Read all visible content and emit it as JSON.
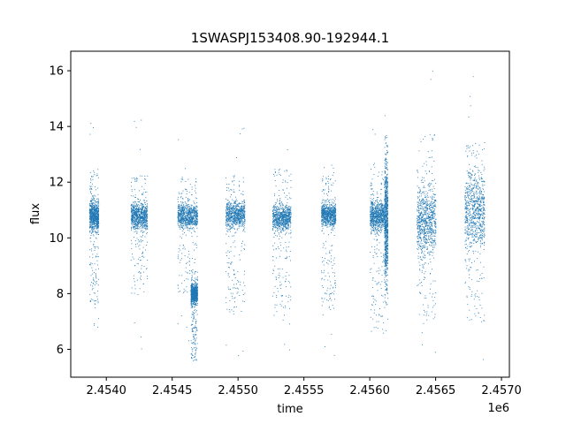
{
  "chart_data": {
    "type": "scatter",
    "title": "1SWASPJ153408.90-192944.1",
    "xlabel": "time",
    "ylabel": "flux",
    "x_offset_label": "1e6",
    "xlim": [
      2453730,
      2457060
    ],
    "ylim": [
      5.0,
      16.7
    ],
    "x_ticks": [
      2.454,
      2.4545,
      2.455,
      2.4555,
      2.456,
      2.4565,
      2.457
    ],
    "x_tick_labels": [
      "2.4540",
      "2.4545",
      "2.4550",
      "2.4555",
      "2.4560",
      "2.4565",
      "2.4570"
    ],
    "y_ticks": [
      6,
      8,
      10,
      12,
      14,
      16
    ],
    "y_tick_labels": [
      "6",
      "8",
      "10",
      "12",
      "14",
      "16"
    ],
    "grid": false,
    "point_color": "#1f77b4",
    "clusters": [
      {
        "x_start": 2453870,
        "x_end": 2453940,
        "core_low": 10.2,
        "core_high": 11.4,
        "tail_low": 7.5,
        "tail_high": 12.5,
        "outlier_low": 5.8,
        "outlier_high": 16.0
      },
      {
        "x_start": 2454185,
        "x_end": 2454310,
        "core_low": 10.3,
        "core_high": 11.3,
        "tail_low": 7.9,
        "tail_high": 12.3,
        "outlier_low": 5.8,
        "outlier_high": 16.1
      },
      {
        "x_start": 2454540,
        "x_end": 2454690,
        "core_low": 10.3,
        "core_high": 11.3,
        "tail_low": 8.0,
        "tail_high": 12.3,
        "outlier_low": 5.6,
        "outlier_high": 13.8
      },
      {
        "x_start": 2454640,
        "x_end": 2454690,
        "core_low": 7.6,
        "core_high": 8.4,
        "tail_low": 5.6,
        "tail_high": 8.8,
        "outlier_low": 5.5,
        "outlier_high": 9.0
      },
      {
        "x_start": 2454905,
        "x_end": 2455050,
        "core_low": 10.3,
        "core_high": 11.4,
        "tail_low": 7.3,
        "tail_high": 12.3,
        "outlier_low": 5.6,
        "outlier_high": 14.0
      },
      {
        "x_start": 2455260,
        "x_end": 2455400,
        "core_low": 10.2,
        "core_high": 11.3,
        "tail_low": 7.2,
        "tail_high": 12.5,
        "outlier_low": 5.8,
        "outlier_high": 13.8
      },
      {
        "x_start": 2455630,
        "x_end": 2455740,
        "core_low": 10.4,
        "core_high": 11.3,
        "tail_low": 7.4,
        "tail_high": 12.4,
        "outlier_low": 5.6,
        "outlier_high": 13.0
      },
      {
        "x_start": 2456000,
        "x_end": 2456110,
        "core_low": 10.2,
        "core_high": 11.4,
        "tail_low": 6.5,
        "tail_high": 12.8,
        "outlier_low": 5.6,
        "outlier_high": 14.3
      },
      {
        "x_start": 2456110,
        "x_end": 2456135,
        "core_low": 8.6,
        "core_high": 12.6,
        "tail_low": 7.5,
        "tail_high": 13.7,
        "outlier_low": 6.0,
        "outlier_high": 14.5
      },
      {
        "x_start": 2456355,
        "x_end": 2456500,
        "core_low": 9.3,
        "core_high": 12.0,
        "tail_low": 7.0,
        "tail_high": 13.8,
        "outlier_low": 5.6,
        "outlier_high": 16.1
      },
      {
        "x_start": 2456720,
        "x_end": 2456870,
        "core_low": 9.5,
        "core_high": 12.5,
        "tail_low": 7.0,
        "tail_high": 13.5,
        "outlier_low": 5.6,
        "outlier_high": 16.1
      }
    ]
  }
}
